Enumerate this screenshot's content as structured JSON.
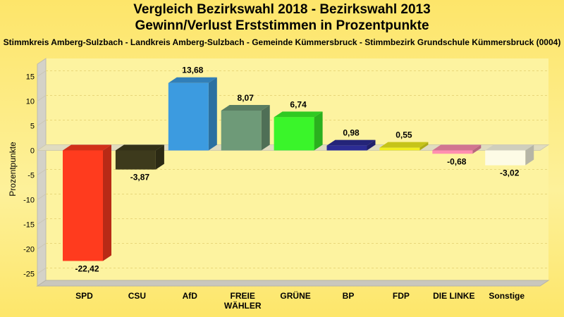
{
  "chart_data": {
    "type": "bar",
    "title": "Vergleich Bezirkswahl 2018 - Bezirkswahl 2013",
    "subtitle": "Gewinn/Verlust Erststimmen in Prozentpunkte",
    "caption": "Stimmkreis Amberg-Sulzbach - Landkreis Amberg-Sulzbach - Gemeinde Kümmersbruck - Stimmbezirk Grundschule Kümmersbruck (0004)",
    "ylabel": "Prozentpunkte",
    "xlabel": "",
    "ylim": [
      -27.5,
      17.5
    ],
    "yticks": [
      15,
      10,
      5,
      0,
      -5,
      -10,
      -15,
      -20,
      -25
    ],
    "grid": true,
    "categories": [
      "SPD",
      "CSU",
      "AfD",
      "FREIE WÄHLER",
      "GRÜNE",
      "BP",
      "FDP",
      "DIE LINKE",
      "Sonstige"
    ],
    "category_lines": [
      [
        "SPD"
      ],
      [
        "CSU"
      ],
      [
        "AfD"
      ],
      [
        "FREIE",
        "WÄHLER"
      ],
      [
        "GRÜNE"
      ],
      [
        "BP"
      ],
      [
        "FDP"
      ],
      [
        "DIE LINKE"
      ],
      [
        "Sonstige"
      ]
    ],
    "values": [
      -22.42,
      -3.87,
      13.68,
      8.07,
      6.74,
      0.98,
      0.55,
      -0.68,
      -3.02
    ],
    "value_labels": [
      "-22,42",
      "-3,87",
      "13,68",
      "8,07",
      "6,74",
      "0,98",
      "0,55",
      "-0,68",
      "-3,02"
    ],
    "colors": [
      "#ff3b1e",
      "#3d3a1c",
      "#3c9be0",
      "#6e9a78",
      "#3af52a",
      "#2c2c94",
      "#f2ef1e",
      "#ff8fb0",
      "#fdfbe6"
    ]
  }
}
